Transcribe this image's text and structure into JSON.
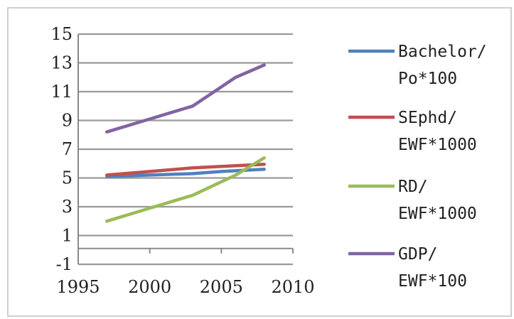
{
  "chart_data": {
    "type": "line",
    "xlim": [
      1995,
      2010
    ],
    "ylim": [
      -1,
      15
    ],
    "x_ticks": [
      "1995",
      "2000",
      "2005",
      "2010"
    ],
    "y_ticks": [
      "15",
      "13",
      "11",
      "9",
      "7",
      "5",
      "3",
      "1",
      "-1"
    ],
    "grid": "horizontal",
    "legend_position": "right",
    "series": [
      {
        "name": "Bachelor/\nPo*100",
        "legend_lines": [
          "Bachelor/",
          "Po*100"
        ],
        "color": "#4f81bd",
        "x": [
          1997,
          2000,
          2003,
          2005,
          2008
        ],
        "y": [
          5.1,
          5.2,
          5.3,
          5.45,
          5.6
        ]
      },
      {
        "name": "SEphd/\nEWF*1000",
        "legend_lines": [
          "SEphd/",
          "EWF*1000"
        ],
        "color": "#c0504d",
        "x": [
          1997,
          2000,
          2003,
          2005,
          2008
        ],
        "y": [
          5.2,
          5.45,
          5.7,
          5.8,
          5.95
        ]
      },
      {
        "name": "RD/\nEWF*1000",
        "legend_lines": [
          "RD/",
          "EWF*1000"
        ],
        "color": "#9bbb59",
        "x": [
          1997,
          2000,
          2003,
          2006,
          2008
        ],
        "y": [
          2.0,
          2.9,
          3.8,
          5.2,
          6.4
        ]
      },
      {
        "name": "GDP/\nEWF*100",
        "legend_lines": [
          "GDP/",
          "EWF*100"
        ],
        "color": "#8064a2",
        "x": [
          1997,
          2000,
          2003,
          2006,
          2008
        ],
        "y": [
          8.2,
          9.1,
          10.0,
          12.0,
          12.85
        ]
      }
    ]
  }
}
